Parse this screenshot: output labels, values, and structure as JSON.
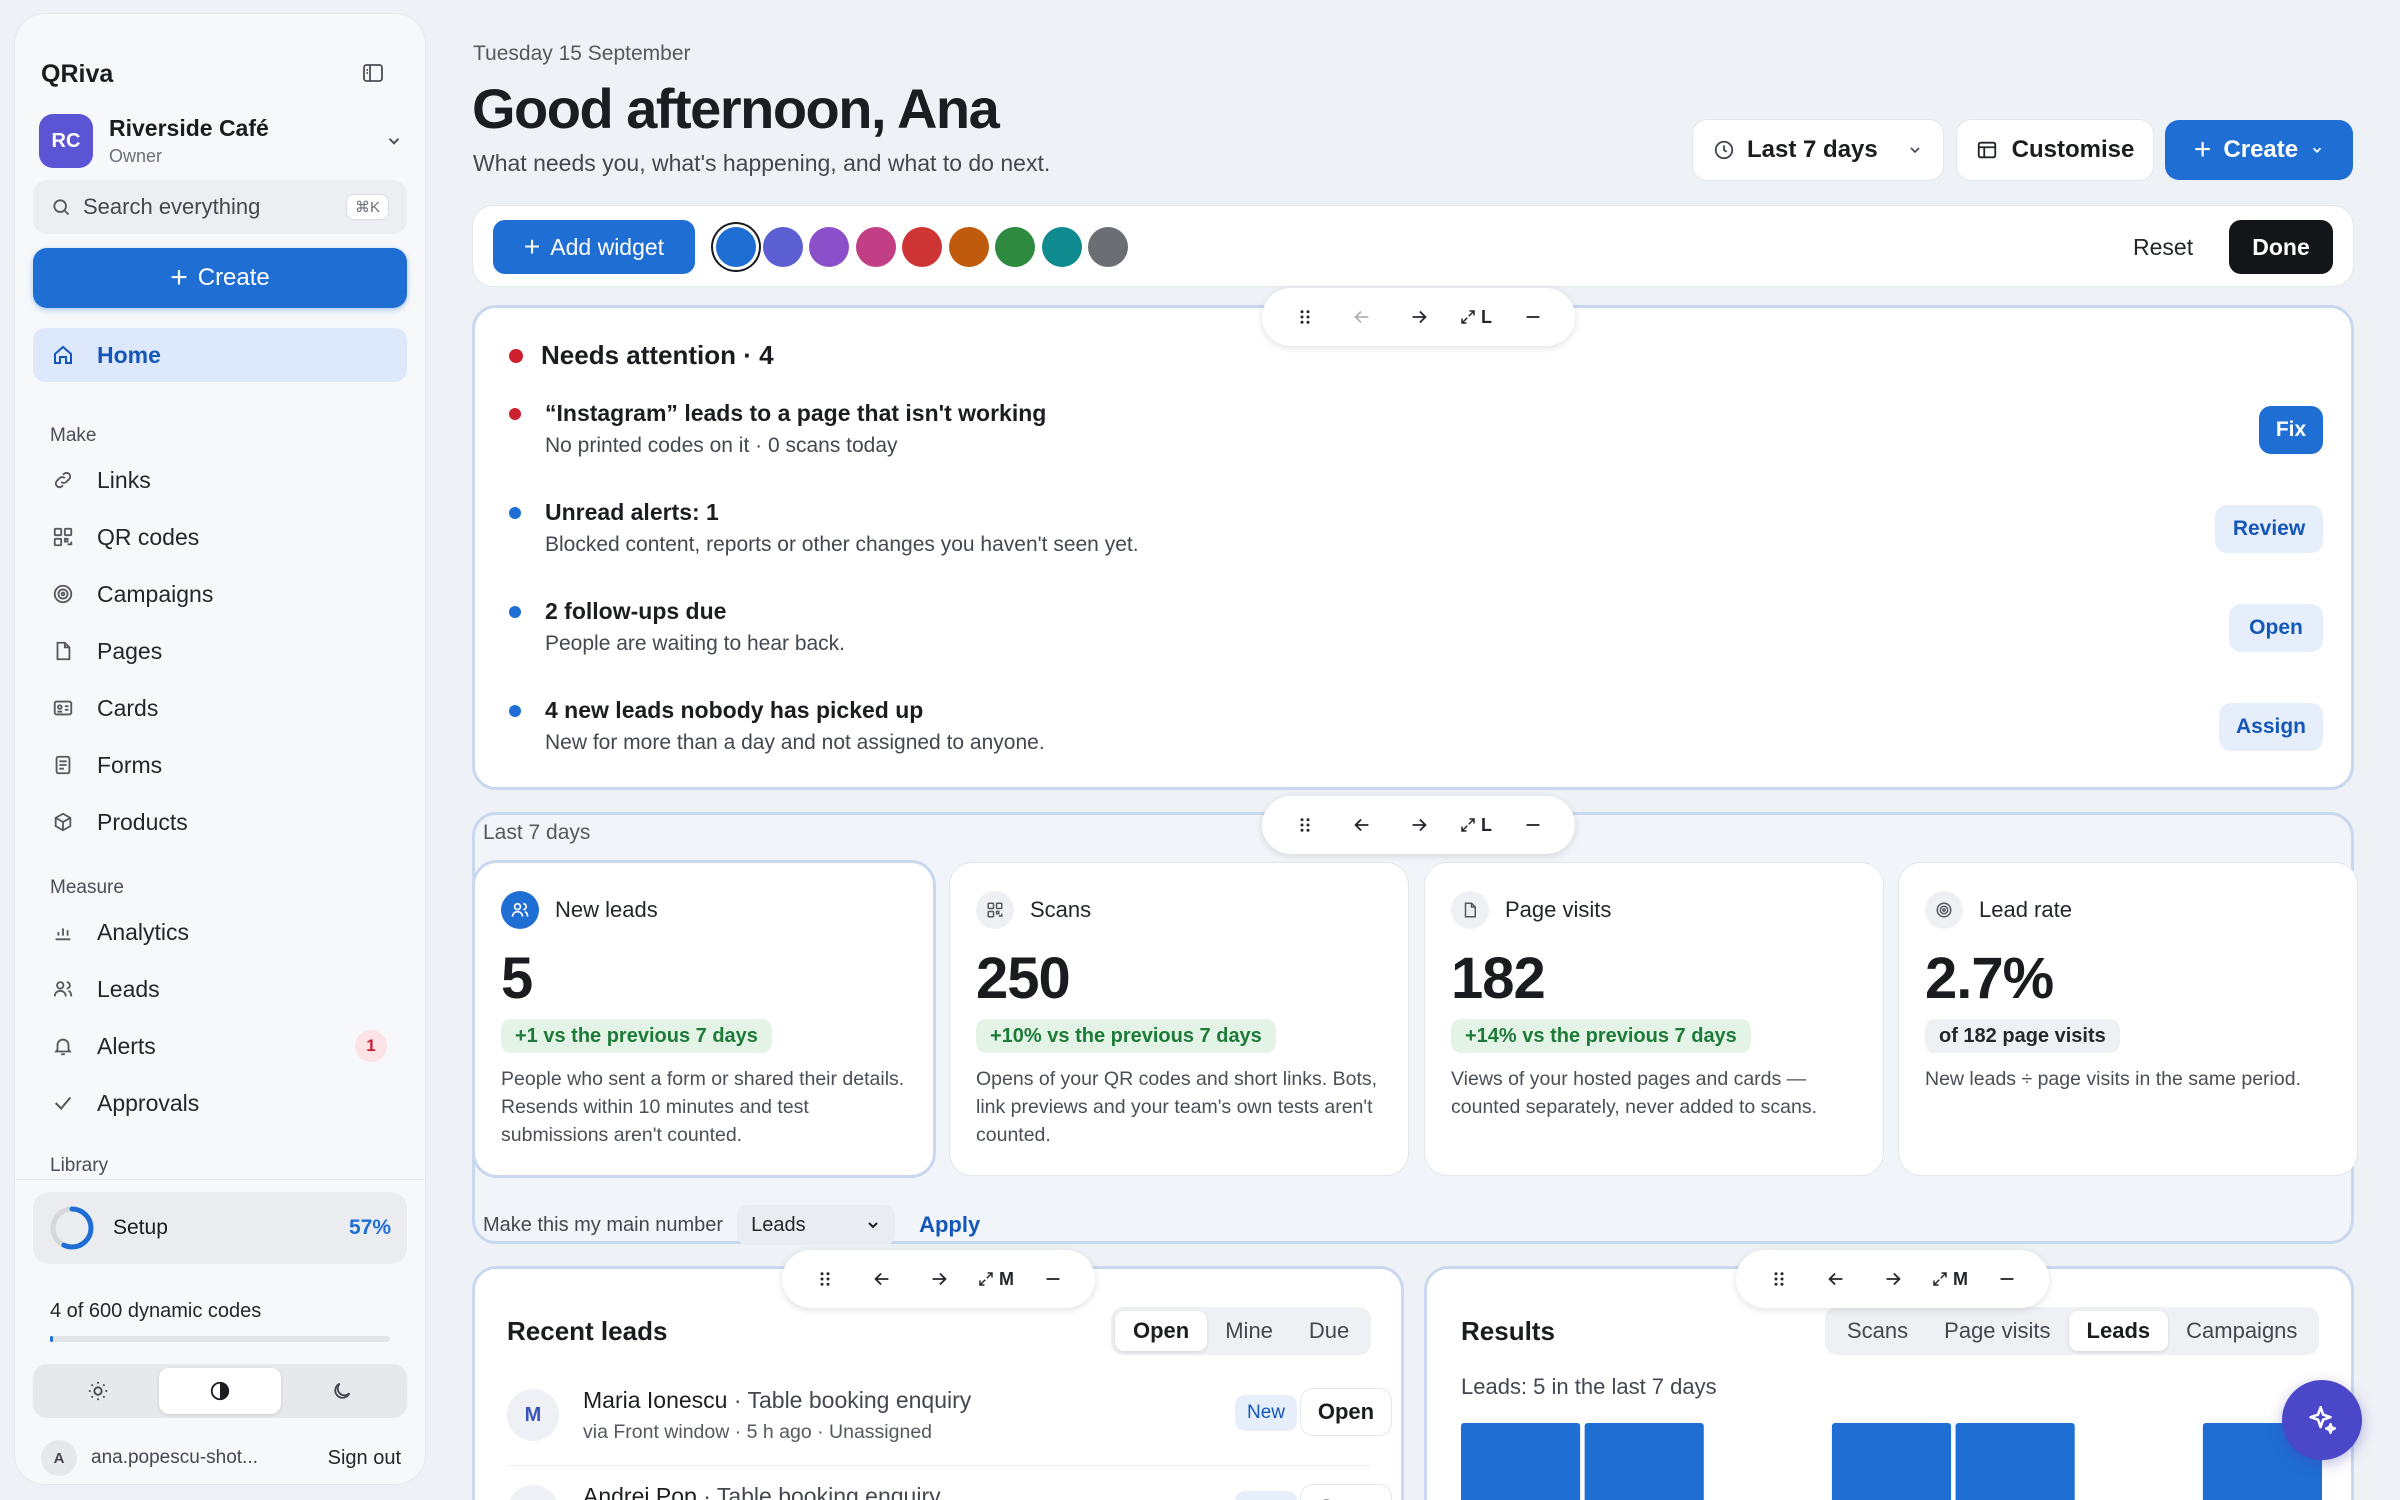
{
  "app": {
    "brand": "QRiva"
  },
  "org": {
    "initials": "RC",
    "name": "Riverside Café",
    "role": "Owner"
  },
  "search": {
    "placeholder": "Search everything",
    "shortcut": "⌘K"
  },
  "sidebar": {
    "create_label": "Create",
    "home_label": "Home",
    "make_label": "Make",
    "make_items": [
      {
        "label": "Links",
        "icon": "link-icon"
      },
      {
        "label": "QR codes",
        "icon": "qr-icon"
      },
      {
        "label": "Campaigns",
        "icon": "target-icon"
      },
      {
        "label": "Pages",
        "icon": "page-icon"
      },
      {
        "label": "Cards",
        "icon": "card-icon"
      },
      {
        "label": "Forms",
        "icon": "form-icon"
      },
      {
        "label": "Products",
        "icon": "box-icon"
      }
    ],
    "measure_label": "Measure",
    "measure_items": [
      {
        "label": "Analytics",
        "icon": "chart-icon"
      },
      {
        "label": "Leads",
        "icon": "users-icon"
      },
      {
        "label": "Alerts",
        "icon": "bell-icon",
        "badge": "1"
      },
      {
        "label": "Approvals",
        "icon": "check-icon"
      }
    ],
    "library_label": "Library",
    "setup": {
      "label": "Setup",
      "percent_label": "57%",
      "progress": 0.57
    },
    "codes": {
      "text": "4 of 600 dynamic codes",
      "progress": 0.0067
    },
    "user": {
      "initial": "A",
      "email": "ana.popescu-shot...",
      "signout": "Sign out"
    }
  },
  "header": {
    "date": "Tuesday 15 September",
    "greeting": "Good afternoon, Ana",
    "subtitle": "What needs you, what's happening, and what to do next.",
    "period_label": "Last 7 days",
    "customise_label": "Customise",
    "create_label": "Create"
  },
  "toolbar": {
    "add_widget_label": "Add widget",
    "swatches": [
      "#1f6ed4",
      "#5b5fd2",
      "#8a4fc9",
      "#c23f85",
      "#cf3434",
      "#c05a0c",
      "#2e8a3e",
      "#0f8a8f",
      "#6b6e73"
    ],
    "reset_label": "Reset",
    "done_label": "Done"
  },
  "widget_controls": {
    "size_l": "L",
    "size_m": "M"
  },
  "attention": {
    "title": "Needs attention · 4",
    "colors": {
      "urgent": "#cc1f2f",
      "info": "#1f6ed4"
    },
    "items": [
      {
        "title": "“Instagram” leads to a page that isn't working",
        "desc": "No printed codes on it · 0 scans today",
        "action": "Fix",
        "level": "urgent"
      },
      {
        "title": "Unread alerts: 1",
        "desc": "Blocked content, reports or other changes you haven't seen yet.",
        "action": "Review",
        "level": "info"
      },
      {
        "title": "2 follow-ups due",
        "desc": "People are waiting to hear back.",
        "action": "Open",
        "level": "info"
      },
      {
        "title": "4 new leads nobody has picked up",
        "desc": "New for more than a day and not assigned to anyone.",
        "action": "Assign",
        "level": "info"
      }
    ]
  },
  "last7": {
    "title": "Last 7 days",
    "cards": [
      {
        "label": "New leads",
        "value": "5",
        "chip": "+1 vs the previous 7 days",
        "desc": "People who sent a form or shared their details. Resends within 10 minutes and test submissions aren't counted."
      },
      {
        "label": "Scans",
        "value": "250",
        "chip": "+10% vs the previous 7 days",
        "desc": "Opens of your QR codes and short links. Bots, link previews and your team's own tests aren't counted."
      },
      {
        "label": "Page visits",
        "value": "182",
        "chip": "+14% vs the previous 7 days",
        "desc": "Views of your hosted pages and cards — counted separately, never added to scans."
      },
      {
        "label": "Lead rate",
        "value": "2.7%",
        "chip": "of 182 page visits",
        "desc": "New leads ÷ page visits in the same period."
      }
    ],
    "main_number_label": "Make this my main number",
    "main_number_value": "Leads",
    "apply_label": "Apply"
  },
  "recent_leads": {
    "title": "Recent leads",
    "tabs": [
      "Open",
      "Mine",
      "Due"
    ],
    "active_tab": "Open",
    "rows": [
      {
        "initial": "M",
        "name": "Maria Ionescu",
        "subject": " · Table booking enquiry",
        "meta": "via Front window · 5 h ago · Unassigned",
        "badge": "New",
        "action": "Open"
      },
      {
        "initial": "A",
        "name": "Andrei Pop",
        "subject": " · Table booking enquiry",
        "meta": "",
        "badge": "New",
        "action": "Open"
      }
    ]
  },
  "results": {
    "title": "Results",
    "tabs": [
      "Scans",
      "Page visits",
      "Leads",
      "Campaigns"
    ],
    "active_tab": "Leads",
    "subtitle": "Leads: 5 in the last 7 days",
    "chart_data": {
      "type": "bar",
      "series": [
        {
          "values": [
            1,
            1,
            0,
            1,
            1,
            0,
            1
          ]
        }
      ],
      "color": "#1f6ed4"
    }
  }
}
